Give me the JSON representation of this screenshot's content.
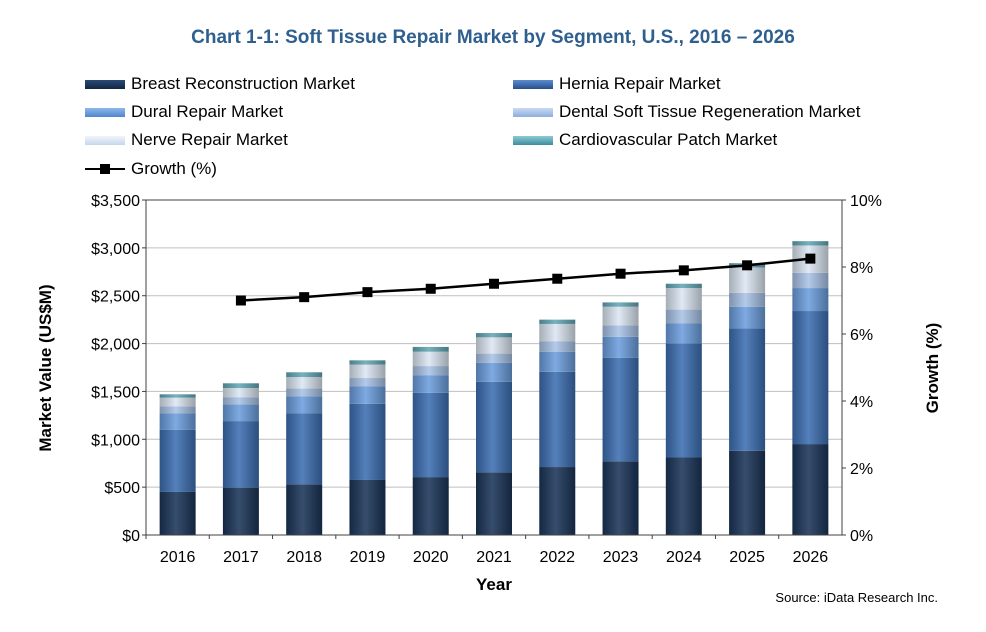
{
  "title": "Chart 1-1: Soft Tissue Repair Market by Segment, U.S., 2016 – 2026",
  "source": "Source: iData Research Inc.",
  "colors": {
    "breast": "#1b3558",
    "hernia": "#3d6fb2",
    "dural": "#6c9ede",
    "dental": "#a9c3e6",
    "nerve": "#dce6f2",
    "cardio": "#63a8b6",
    "growth": "#000000",
    "title": "#2f5f8f"
  },
  "chart_data": {
    "type": "bar",
    "stacked": true,
    "title": "Chart 1-1: Soft Tissue Repair Market by Segment, U.S., 2016 – 2026",
    "xlabel": "Year",
    "ylabel": "Market Value (US$M)",
    "y2label": "Growth (%)",
    "ylim": [
      0,
      3500
    ],
    "y2lim": [
      0,
      10
    ],
    "yticks": [
      "$0",
      "$500",
      "$1,000",
      "$1,500",
      "$2,000",
      "$2,500",
      "$3,000",
      "$3,500"
    ],
    "y2ticks": [
      "0%",
      "2%",
      "4%",
      "6%",
      "8%",
      "10%"
    ],
    "categories": [
      "2016",
      "2017",
      "2018",
      "2019",
      "2020",
      "2021",
      "2022",
      "2023",
      "2024",
      "2025",
      "2026"
    ],
    "series": [
      {
        "name": "Breast Reconstruction Market",
        "color_key": "breast",
        "values": [
          450,
          495,
          530,
          575,
          605,
          655,
          710,
          770,
          810,
          880,
          950
        ]
      },
      {
        "name": "Hernia Repair Market",
        "color_key": "hernia",
        "values": [
          650,
          695,
          740,
          795,
          880,
          945,
          995,
          1080,
          1190,
          1280,
          1390
        ]
      },
      {
        "name": "Dural Repair Market",
        "color_key": "dural",
        "values": [
          170,
          175,
          180,
          185,
          185,
          200,
          210,
          220,
          210,
          225,
          240
        ]
      },
      {
        "name": "Dental Soft Tissue Regeneration Market",
        "color_key": "dental",
        "values": [
          75,
          75,
          80,
          85,
          95,
          95,
          110,
          120,
          145,
          145,
          160
        ]
      },
      {
        "name": "Nerve Repair Market",
        "color_key": "nerve",
        "values": [
          90,
          95,
          120,
          140,
          150,
          170,
          180,
          195,
          225,
          265,
          285
        ]
      },
      {
        "name": "Cardiovascular Patch Market",
        "color_key": "cardio",
        "values": [
          35,
          50,
          50,
          45,
          50,
          45,
          45,
          45,
          45,
          45,
          45
        ]
      }
    ],
    "growth": {
      "name": "Growth (%)",
      "values": [
        null,
        7.0,
        7.1,
        7.25,
        7.35,
        7.5,
        7.65,
        7.8,
        7.9,
        8.05,
        8.25
      ]
    }
  }
}
